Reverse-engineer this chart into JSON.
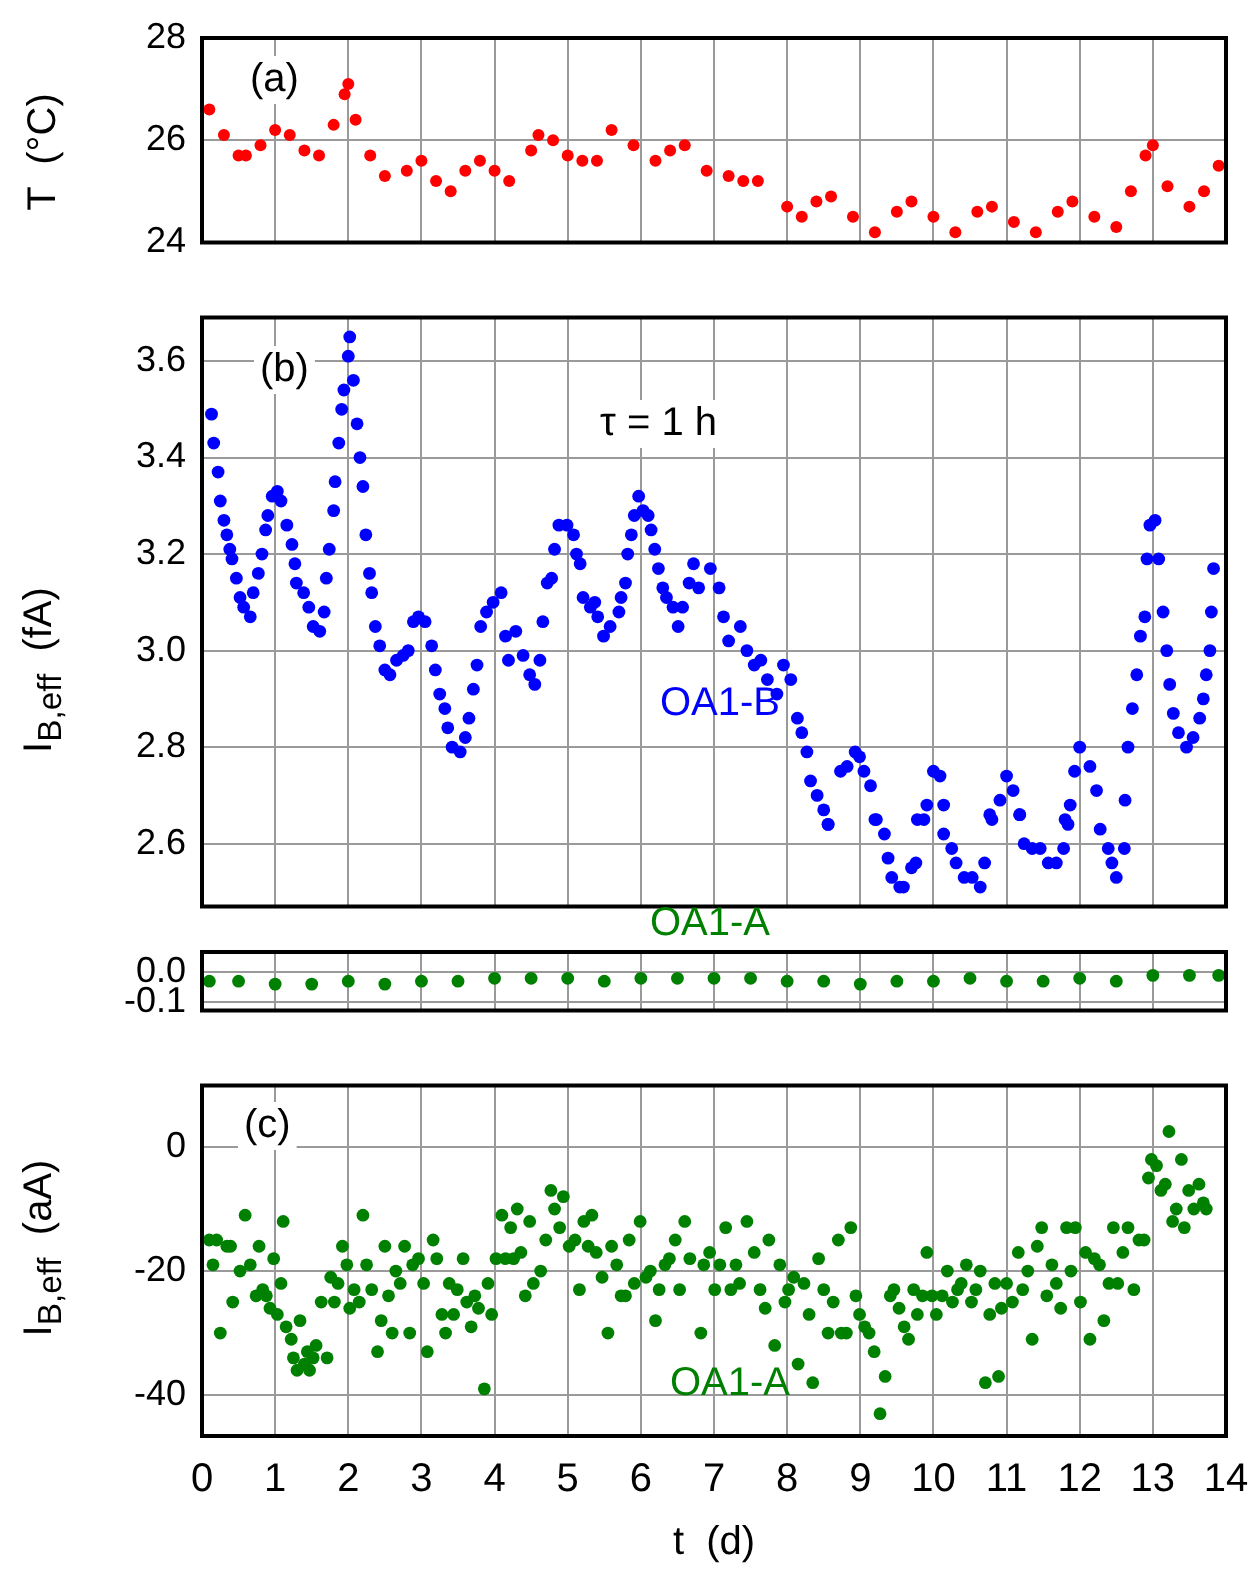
{
  "chart_data": [
    {
      "type": "scatter",
      "ylabel": "T  (°C)",
      "annotations": [
        "(a)"
      ],
      "xlim": [
        0,
        14
      ],
      "xticks": [
        0,
        1,
        2,
        3,
        4,
        5,
        6,
        7,
        8,
        9,
        10,
        11,
        12,
        13,
        14
      ],
      "ylim": [
        24,
        28
      ],
      "yticks": [
        24,
        26,
        28
      ],
      "grid": true,
      "legend": false,
      "marker": "circle",
      "tick_labels": "y",
      "series": [
        {
          "color": "#ff0000",
          "x": [
            0.1,
            0.3,
            0.5,
            0.6,
            0.8,
            1.0,
            1.2,
            1.4,
            1.6,
            1.8,
            1.95,
            2.0,
            2.1,
            2.3,
            2.5,
            2.8,
            3.0,
            3.2,
            3.4,
            3.6,
            3.8,
            4.0,
            4.2,
            4.5,
            4.6,
            4.8,
            5.0,
            5.2,
            5.4,
            5.6,
            5.9,
            6.2,
            6.4,
            6.6,
            6.9,
            7.2,
            7.4,
            7.6,
            8.0,
            8.2,
            8.4,
            8.6,
            8.9,
            9.2,
            9.5,
            9.7,
            10.0,
            10.3,
            10.6,
            10.8,
            11.1,
            11.4,
            11.7,
            11.9,
            12.2,
            12.5,
            12.7,
            12.9,
            13.0,
            13.2,
            13.5,
            13.7,
            13.9
          ],
          "values": [
            26.6,
            26.1,
            25.7,
            25.7,
            25.9,
            26.2,
            26.1,
            25.8,
            25.7,
            26.3,
            26.9,
            27.1,
            26.4,
            25.7,
            25.3,
            25.4,
            25.6,
            25.2,
            25.0,
            25.4,
            25.6,
            25.4,
            25.2,
            25.8,
            26.1,
            26.0,
            25.7,
            25.6,
            25.6,
            26.2,
            25.9,
            25.6,
            25.8,
            25.9,
            25.4,
            25.3,
            25.2,
            25.2,
            24.7,
            24.5,
            24.8,
            24.9,
            24.5,
            24.2,
            24.6,
            24.8,
            24.5,
            24.2,
            24.6,
            24.7,
            24.4,
            24.2,
            24.6,
            24.8,
            24.5,
            24.3,
            25.0,
            25.7,
            25.9,
            25.1,
            24.7,
            25.0,
            25.5
          ]
        }
      ]
    },
    {
      "type": "scatter",
      "ylabel": "I$_{B,eff}$  (fA)",
      "annotations": [
        "(b)",
        "τ = 1 h"
      ],
      "xlim": [
        0,
        14
      ],
      "xticks": [
        0,
        1,
        2,
        3,
        4,
        5,
        6,
        7,
        8,
        9,
        10,
        11,
        12,
        13,
        14
      ],
      "ylim": [
        2.47,
        3.69
      ],
      "yticks": [
        2.6,
        2.8,
        {
          "value": 3,
          "label": "3.0"
        },
        3.2,
        3.4,
        3.6
      ],
      "grid": true,
      "legend": false,
      "marker": "circle",
      "tick_labels": "y",
      "series": [
        {
          "name": "OA1-B",
          "color": "#0000ff",
          "x": [
            0.13,
            0.16,
            0.22,
            0.25,
            0.3,
            0.34,
            0.38,
            0.41,
            0.47,
            0.52,
            0.57,
            0.66,
            0.7,
            0.77,
            0.82,
            0.87,
            0.9,
            0.96,
            1.03,
            1.08,
            1.16,
            1.23,
            1.27,
            1.29,
            1.39,
            1.46,
            1.52,
            1.61,
            1.67,
            1.7,
            1.74,
            1.8,
            1.82,
            1.87,
            1.91,
            1.94,
            2.0,
            2.02,
            2.07,
            2.12,
            2.16,
            2.2,
            2.24,
            2.29,
            2.32,
            2.37,
            2.43,
            2.5,
            2.57,
            2.66,
            2.75,
            2.82,
            2.89,
            2.96,
            3.05,
            3.14,
            3.19,
            3.25,
            3.32,
            3.36,
            3.42,
            3.53,
            3.6,
            3.65,
            3.71,
            3.76,
            3.81,
            3.89,
            3.98,
            4.09,
            4.15,
            4.19,
            4.29,
            4.39,
            4.48,
            4.55,
            4.62,
            4.66,
            4.72,
            4.78,
            4.82,
            4.88,
            4.99,
            5.08,
            5.12,
            5.17,
            5.21,
            5.31,
            5.37,
            5.41,
            5.49,
            5.58,
            5.7,
            5.73,
            5.79,
            5.82,
            5.87,
            5.91,
            5.97,
            6.03,
            6.1,
            6.14,
            6.19,
            6.24,
            6.3,
            6.35,
            6.44,
            6.51,
            6.57,
            6.66,
            6.72,
            6.79,
            6.95,
            7.07,
            7.13,
            7.2,
            7.36,
            7.45,
            7.55,
            7.64,
            7.73,
            7.86,
            7.95,
            8.05,
            8.14,
            8.2,
            8.27,
            8.32,
            8.41,
            8.5,
            8.56,
            8.56,
            8.73,
            8.82,
            8.93,
            8.99,
            9.05,
            9.14,
            9.2,
            9.22,
            9.33,
            9.38,
            9.43,
            9.54,
            9.59,
            9.7,
            9.76,
            9.78,
            9.87,
            9.91,
            10.0,
            10.09,
            10.14,
            10.14,
            10.25,
            10.31,
            10.42,
            10.53,
            10.64,
            10.7,
            10.77,
            10.8,
            10.91,
            11.0,
            11.09,
            11.18,
            11.18,
            11.24,
            11.35,
            11.46,
            11.57,
            11.68,
            11.78,
            11.8,
            11.84,
            11.87,
            11.93,
            12.0,
            12.14,
            12.23,
            12.28,
            12.39,
            12.44,
            12.5,
            12.61,
            12.62,
            12.66,
            12.72,
            12.78,
            12.83,
            12.89,
            12.92,
            12.96,
            13.03,
            13.08,
            13.14,
            13.19,
            13.23,
            13.28,
            13.35,
            13.46,
            13.55,
            13.64,
            13.69,
            13.73,
            13.78,
            13.8,
            13.83
          ],
          "values": [
            3.49,
            3.43,
            3.37,
            3.31,
            3.27,
            3.24,
            3.21,
            3.19,
            3.15,
            3.11,
            3.09,
            3.07,
            3.12,
            3.16,
            3.2,
            3.25,
            3.28,
            3.32,
            3.33,
            3.31,
            3.26,
            3.22,
            3.18,
            3.14,
            3.12,
            3.09,
            3.05,
            3.04,
            3.08,
            3.15,
            3.21,
            3.29,
            3.35,
            3.43,
            3.5,
            3.54,
            3.61,
            3.65,
            3.56,
            3.47,
            3.4,
            3.34,
            3.24,
            3.16,
            3.12,
            3.05,
            3.01,
            2.96,
            2.95,
            2.98,
            2.99,
            3.0,
            3.06,
            3.07,
            3.06,
            3.01,
            2.96,
            2.91,
            2.88,
            2.84,
            2.8,
            2.79,
            2.82,
            2.86,
            2.92,
            2.97,
            3.05,
            3.08,
            3.1,
            3.12,
            3.03,
            2.98,
            3.04,
            2.99,
            2.95,
            2.93,
            2.98,
            3.06,
            3.14,
            3.15,
            3.21,
            3.26,
            3.26,
            3.24,
            3.2,
            3.18,
            3.11,
            3.09,
            3.1,
            3.07,
            3.03,
            3.05,
            3.08,
            3.11,
            3.14,
            3.2,
            3.24,
            3.28,
            3.32,
            3.29,
            3.28,
            3.25,
            3.21,
            3.17,
            3.13,
            3.11,
            3.09,
            3.05,
            3.09,
            3.14,
            3.18,
            3.13,
            3.17,
            3.13,
            3.07,
            3.02,
            3.05,
            3.0,
            2.97,
            2.98,
            2.94,
            2.91,
            2.97,
            2.94,
            2.86,
            2.83,
            2.79,
            2.73,
            2.7,
            2.67,
            2.64,
            2.64,
            2.75,
            2.76,
            2.79,
            2.78,
            2.75,
            2.72,
            2.65,
            2.65,
            2.62,
            2.57,
            2.53,
            2.51,
            2.51,
            2.55,
            2.56,
            2.65,
            2.65,
            2.68,
            2.75,
            2.74,
            2.68,
            2.62,
            2.59,
            2.56,
            2.53,
            2.53,
            2.51,
            2.56,
            2.66,
            2.65,
            2.69,
            2.74,
            2.71,
            2.66,
            2.66,
            2.6,
            2.59,
            2.59,
            2.56,
            2.56,
            2.59,
            2.65,
            2.64,
            2.68,
            2.75,
            2.8,
            2.76,
            2.71,
            2.63,
            2.59,
            2.56,
            2.53,
            2.59,
            2.69,
            2.8,
            2.88,
            2.95,
            3.03,
            3.07,
            3.19,
            3.26,
            3.27,
            3.19,
            3.08,
            3.0,
            2.93,
            2.87,
            2.83,
            2.8,
            2.82,
            2.86,
            2.9,
            2.95,
            3.0,
            3.08,
            3.17
          ]
        }
      ]
    },
    {
      "type": "scatter",
      "xlim": [
        0,
        14
      ],
      "xticks": [
        0,
        1,
        2,
        3,
        4,
        5,
        6,
        7,
        8,
        9,
        10,
        11,
        12,
        13,
        14
      ],
      "ylim": [
        -0.13,
        0.07
      ],
      "yticks": [
        {
          "value": -0.1,
          "label": "-0.1"
        },
        {
          "value": 0,
          "label": "0.0"
        }
      ],
      "grid": true,
      "legend": false,
      "marker": "circle",
      "tick_labels": "y",
      "series": [
        {
          "name": "OA1-A",
          "color": "#008000",
          "x": [
            0.1,
            0.5,
            1,
            1.5,
            2,
            2.5,
            3,
            3.5,
            4,
            4.5,
            5,
            5.5,
            6,
            6.5,
            7,
            7.5,
            8,
            8.5,
            9,
            9.5,
            10,
            10.5,
            11,
            11.5,
            12,
            12.5,
            13,
            13.5,
            13.9
          ],
          "values": [
            -0.03,
            -0.03,
            -0.04,
            -0.04,
            -0.03,
            -0.04,
            -0.03,
            -0.03,
            -0.02,
            -0.02,
            -0.02,
            -0.03,
            -0.02,
            -0.02,
            -0.02,
            -0.02,
            -0.03,
            -0.03,
            -0.04,
            -0.03,
            -0.03,
            -0.02,
            -0.03,
            -0.03,
            -0.02,
            -0.03,
            -0.01,
            -0.01,
            -0.01
          ]
        }
      ]
    },
    {
      "type": "scatter",
      "ylabel": "I$_{B,eff}$  (aA)",
      "xlabel": "t  (d)",
      "annotations": [
        "(c)"
      ],
      "xlim": [
        0,
        14
      ],
      "xticks": [
        0,
        1,
        2,
        3,
        4,
        5,
        6,
        7,
        8,
        9,
        10,
        11,
        12,
        13,
        14
      ],
      "ylim": [
        -46.6,
        9.9
      ],
      "yticks": [
        -40,
        -20,
        0
      ],
      "grid": true,
      "legend": false,
      "marker": "circle",
      "series": [
        {
          "name": "OA1-A",
          "color": "#008000",
          "x": [
            0.1,
            0.15,
            0.2,
            0.25,
            0.34,
            0.39,
            0.42,
            0.52,
            0.59,
            0.66,
            0.74,
            0.78,
            0.83,
            0.88,
            0.93,
            0.98,
            1.03,
            1.08,
            1.11,
            1.15,
            1.22,
            1.25,
            1.3,
            1.34,
            1.4,
            1.44,
            1.47,
            1.52,
            1.56,
            1.63,
            1.71,
            1.76,
            1.81,
            1.86,
            1.92,
            1.98,
            2.02,
            2.08,
            2.15,
            2.2,
            2.25,
            2.32,
            2.4,
            2.45,
            2.5,
            2.55,
            2.6,
            2.65,
            2.71,
            2.77,
            2.84,
            2.88,
            2.96,
            3.03,
            3.08,
            3.16,
            3.21,
            3.28,
            3.33,
            3.38,
            3.44,
            3.49,
            3.57,
            3.62,
            3.68,
            3.73,
            3.78,
            3.86,
            3.91,
            3.96,
            4.02,
            4.1,
            4.15,
            4.22,
            4.26,
            4.31,
            4.36,
            4.42,
            4.48,
            4.53,
            4.63,
            4.7,
            4.77,
            4.82,
            4.89,
            4.94,
            5.02,
            5.1,
            5.16,
            5.22,
            5.28,
            5.33,
            5.39,
            5.47,
            5.55,
            5.6,
            5.67,
            5.73,
            5.79,
            5.84,
            5.91,
            5.99,
            6.07,
            6.13,
            6.2,
            6.25,
            6.33,
            6.39,
            6.47,
            6.53,
            6.6,
            6.67,
            6.82,
            6.86,
            6.94,
            7.01,
            7.08,
            7.16,
            7.23,
            7.3,
            7.35,
            7.45,
            7.55,
            7.63,
            7.7,
            7.75,
            7.83,
            7.9,
            7.97,
            8.02,
            8.09,
            8.15,
            8.23,
            8.3,
            8.35,
            8.43,
            8.5,
            8.56,
            8.63,
            8.7,
            8.74,
            8.81,
            8.87,
            8.94,
            8.99,
            9.06,
            9.12,
            9.19,
            9.27,
            9.34,
            9.41,
            9.46,
            9.53,
            9.6,
            9.66,
            9.73,
            9.78,
            9.85,
            9.91,
            9.98,
            10.04,
            10.12,
            10.19,
            10.26,
            10.33,
            10.38,
            10.45,
            10.52,
            10.58,
            10.64,
            10.71,
            10.77,
            10.84,
            10.89,
            10.93,
            11.0,
            11.08,
            11.16,
            11.22,
            11.29,
            11.35,
            11.42,
            11.48,
            11.55,
            11.62,
            11.68,
            11.74,
            11.82,
            11.88,
            11.94,
            12.01,
            12.08,
            12.14,
            12.2,
            12.27,
            12.33,
            12.4,
            12.46,
            12.52,
            12.59,
            12.66,
            12.74,
            12.81,
            12.88,
            12.94,
            12.98,
            13.05,
            13.11,
            13.17,
            13.22,
            13.27,
            13.32,
            13.39,
            13.43,
            13.49,
            13.56,
            13.63,
            13.69,
            13.73
          ],
          "values": [
            -15,
            -19,
            -15,
            -30,
            -16,
            -16,
            -25,
            -20,
            -11,
            -19,
            -24,
            -16,
            -23,
            -24,
            -26,
            -18,
            -27,
            -22,
            -12,
            -29,
            -31,
            -34,
            -36,
            -28,
            -35,
            -33,
            -36,
            -34,
            -32,
            -25,
            -34,
            -21,
            -25,
            -22,
            -16,
            -19,
            -26,
            -23,
            -25,
            -11,
            -19,
            -23,
            -33,
            -28,
            -16,
            -24,
            -30,
            -20,
            -22,
            -16,
            -30,
            -19,
            -18,
            -22,
            -33,
            -15,
            -18,
            -27,
            -30,
            -22,
            -27,
            -23,
            -18,
            -25,
            -29,
            -24,
            -26,
            -39,
            -22,
            -27,
            -18,
            -11,
            -18,
            -13,
            -18,
            -10,
            -17,
            -24,
            -12,
            -22,
            -20,
            -15,
            -7,
            -10,
            -13,
            -8,
            -16,
            -15,
            -23,
            -12,
            -16,
            -11,
            -17,
            -21,
            -30,
            -16,
            -19,
            -24,
            -24,
            -15,
            -22,
            -12,
            -21,
            -20,
            -28,
            -23,
            -19,
            -18,
            -15,
            -23,
            -12,
            -18,
            -30,
            -19,
            -17,
            -23,
            -19,
            -13,
            -23,
            -19,
            -22,
            -12,
            -17,
            -23,
            -26,
            -15,
            -32,
            -19,
            -25,
            -23,
            -21,
            -35,
            -22,
            -27,
            -38,
            -18,
            -23,
            -30,
            -25,
            -15,
            -30,
            -30,
            -13,
            -24,
            -27,
            -29,
            -30,
            -33,
            -43,
            -37,
            -24,
            -23,
            -26,
            -29,
            -31,
            -23,
            -27,
            -24,
            -17,
            -24,
            -27,
            -24,
            -20,
            -25,
            -23,
            -22,
            -19,
            -25,
            -23,
            -20,
            -38,
            -27,
            -22,
            -37,
            -26,
            -22,
            -25,
            -17,
            -23,
            -20,
            -31,
            -16,
            -13,
            -24,
            -19,
            -22,
            -26,
            -13,
            -20,
            -13,
            -25,
            -17,
            -31,
            -18,
            -19,
            -28,
            -22,
            -13,
            -22,
            -17,
            -13,
            -23,
            -15,
            -15,
            -5,
            -2,
            -3,
            -7,
            -6,
            2.5,
            -12,
            -10,
            -2,
            -13,
            -7,
            -10,
            -6,
            -9,
            -10
          ]
        }
      ]
    }
  ]
}
